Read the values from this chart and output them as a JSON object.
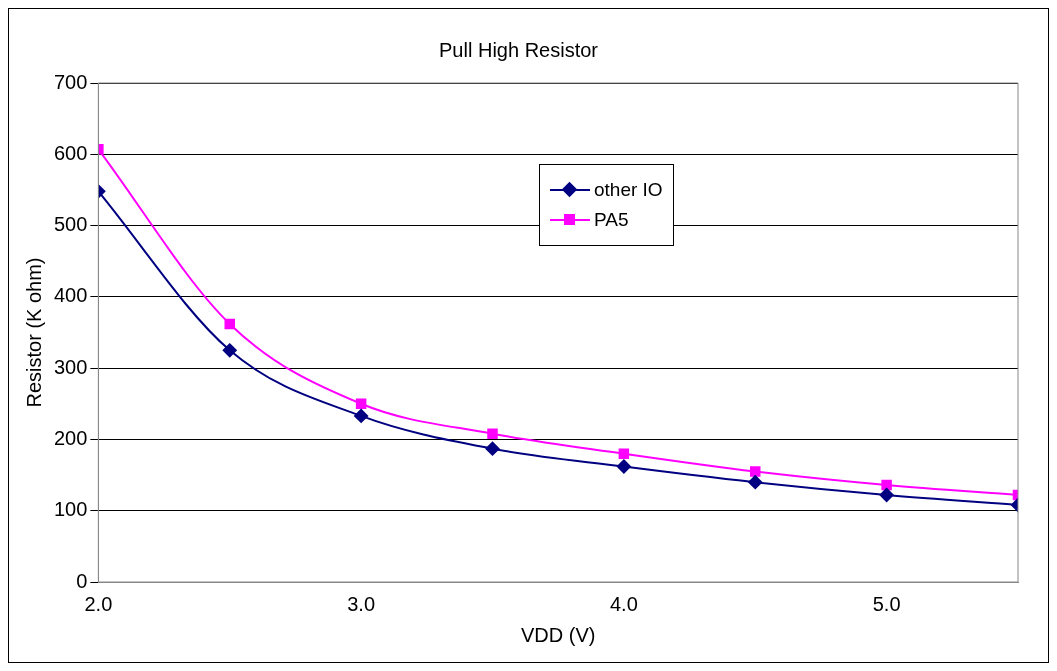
{
  "chart_data": {
    "type": "line",
    "title": "Pull High Resistor",
    "xlabel": "VDD (V)",
    "ylabel": "Resistor (K ohm)",
    "x": [
      2.0,
      2.5,
      3.0,
      3.5,
      4.0,
      4.5,
      5.0,
      5.5
    ],
    "series": [
      {
        "name": "other IO",
        "color": "#000080",
        "marker": "diamond",
        "values": [
          548,
          325,
          233,
          187,
          162,
          140,
          122,
          108
        ]
      },
      {
        "name": "PA5",
        "color": "#ff00ff",
        "marker": "square",
        "values": [
          607,
          362,
          250,
          208,
          180,
          155,
          136,
          122
        ]
      }
    ],
    "xlim": [
      2.0,
      5.5
    ],
    "xticks": [
      {
        "value": 2.0,
        "label": "2.0"
      },
      {
        "value": 3.0,
        "label": "3.0"
      },
      {
        "value": 4.0,
        "label": "4.0"
      },
      {
        "value": 5.0,
        "label": "5.0"
      }
    ],
    "ylim": [
      0,
      700
    ],
    "yticks": [
      0,
      100,
      200,
      300,
      400,
      500,
      600,
      700
    ],
    "grid": "y",
    "legend": "top right",
    "line_style": "solid"
  }
}
